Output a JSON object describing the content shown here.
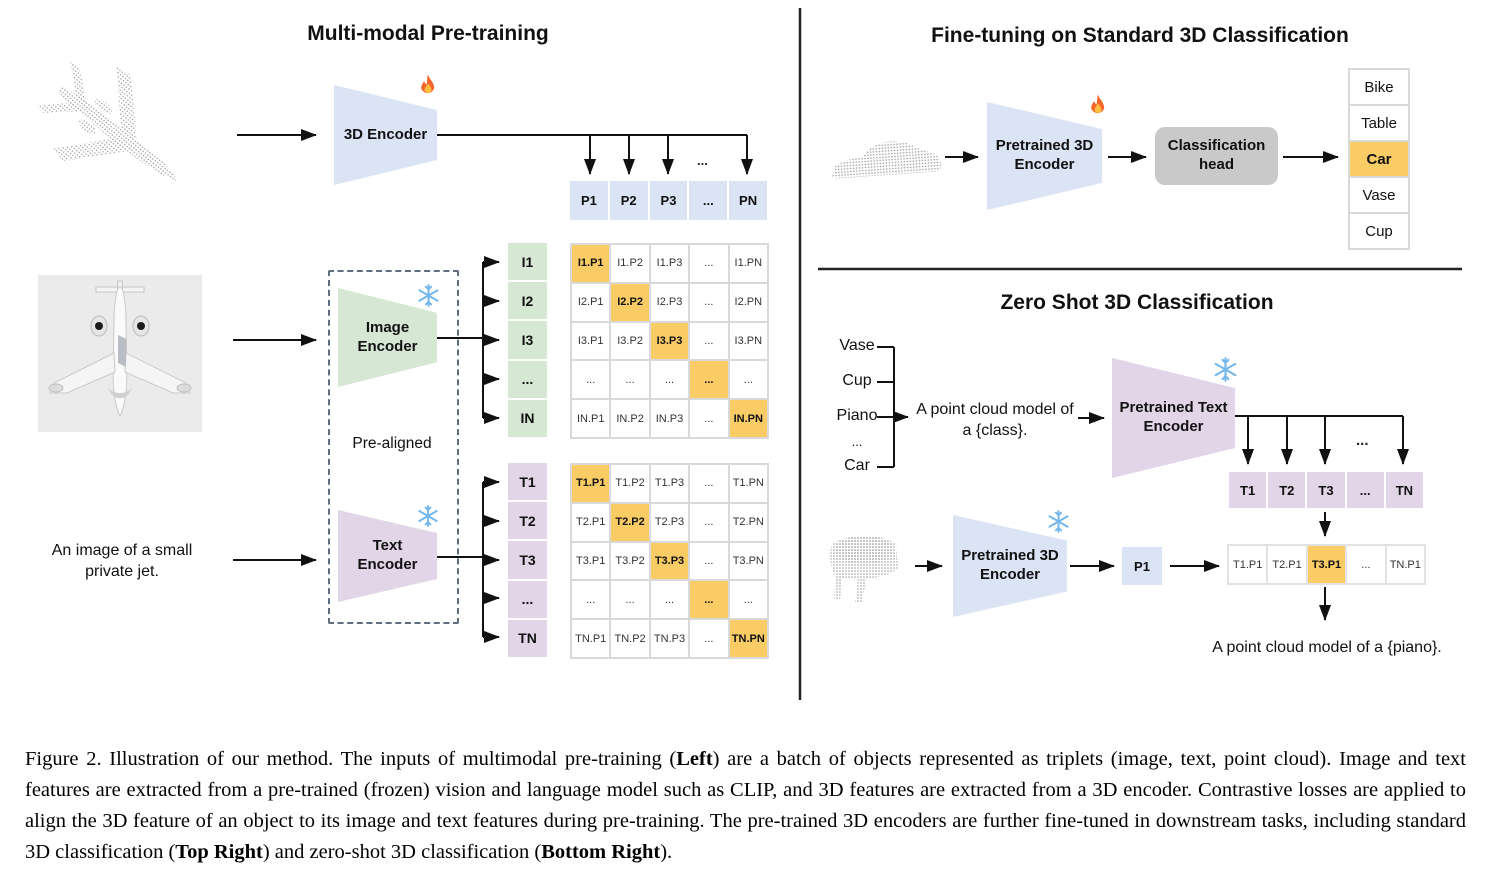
{
  "ellipsis": "...",
  "colors": {
    "blue_fill": "#dae4f4",
    "green_fill": "#d6e8d4",
    "purple_fill": "#e1d5e7",
    "highlight_orange": "#f9cc66",
    "head_gray": "#c9c9c9",
    "border_gray": "#d9d9d9"
  },
  "left_panel": {
    "title": "Multi-modal Pre-training",
    "encoder_3d": {
      "label": "3D Encoder",
      "state_icon": "fire-icon"
    },
    "image_encoder": {
      "label_lines": [
        "Image",
        "Encoder"
      ],
      "state_icon": "snowflake-icon"
    },
    "text_encoder": {
      "label_lines": [
        "Text",
        "Encoder"
      ],
      "state_icon": "snowflake-icon"
    },
    "pre_aligned_label": "Pre-aligned",
    "jet_caption_lines": [
      "An image of a small",
      "private jet."
    ],
    "p_row": [
      "P1",
      "P2",
      "P3",
      "...",
      "PN"
    ],
    "image_matrix": {
      "row_labels": [
        "I1",
        "I2",
        "I3",
        "...",
        "IN"
      ],
      "highlight_diagonal": true,
      "cells": [
        [
          "I1.P1",
          "I1.P2",
          "I1.P3",
          "...",
          "I1.PN"
        ],
        [
          "I2.P1",
          "I2.P2",
          "I2.P3",
          "...",
          "I2.PN"
        ],
        [
          "I3.P1",
          "I3.P2",
          "I3.P3",
          "...",
          "I3.PN"
        ],
        [
          "...",
          "...",
          "...",
          "...",
          "..."
        ],
        [
          "IN.P1",
          "IN.P2",
          "IN.P3",
          "...",
          "IN.PN"
        ]
      ]
    },
    "text_matrix": {
      "row_labels": [
        "T1",
        "T2",
        "T3",
        "...",
        "TN"
      ],
      "highlight_diagonal": true,
      "cells": [
        [
          "T1.P1",
          "T1.P2",
          "T1.P3",
          "...",
          "T1.PN"
        ],
        [
          "T2.P1",
          "T2.P2",
          "T2.P3",
          "...",
          "T2.PN"
        ],
        [
          "T3.P1",
          "T3.P2",
          "T3.P3",
          "...",
          "T3.PN"
        ],
        [
          "...",
          "...",
          "...",
          "...",
          "..."
        ],
        [
          "TN.P1",
          "TN.P2",
          "TN.P3",
          "...",
          "TN.PN"
        ]
      ]
    }
  },
  "top_right_panel": {
    "title": "Fine-tuning on Standard 3D Classification",
    "encoder": {
      "label_lines": [
        "Pretrained 3D",
        "Encoder"
      ],
      "state_icon": "fire-icon"
    },
    "classification_head_lines": [
      "Classification",
      "head"
    ],
    "classes": [
      {
        "label": "Bike",
        "highlighted": false
      },
      {
        "label": "Table",
        "highlighted": false
      },
      {
        "label": "Car",
        "highlighted": true
      },
      {
        "label": "Vase",
        "highlighted": false
      },
      {
        "label": "Cup",
        "highlighted": false
      }
    ]
  },
  "bottom_right_panel": {
    "title": "Zero Shot 3D Classification",
    "candidate_classes": [
      "Vase",
      "Cup",
      "Piano",
      "...",
      "Car"
    ],
    "prompt_lines": [
      "A point cloud model of",
      "a {class}."
    ],
    "text_encoder": {
      "label_lines": [
        "Pretrained Text",
        "Encoder"
      ],
      "state_icon": "snowflake-icon"
    },
    "t_row": [
      "T1",
      "T2",
      "T3",
      "...",
      "TN"
    ],
    "encoder_3d": {
      "label_lines": [
        "Pretrained 3D",
        "Encoder"
      ],
      "state_icon": "snowflake-icon"
    },
    "p1_label": "P1",
    "similarity_row": [
      {
        "label": "T1.P1",
        "highlighted": false
      },
      {
        "label": "T2.P1",
        "highlighted": false
      },
      {
        "label": "T3.P1",
        "highlighted": true
      },
      {
        "label": "...",
        "highlighted": false
      },
      {
        "label": "TN.P1",
        "highlighted": false
      }
    ],
    "result_prompt": "A point cloud model of a {piano}."
  },
  "caption": {
    "segments": [
      {
        "text": "Figure 2. Illustration of our method. The inputs of multimodal pre-training (",
        "bold": false
      },
      {
        "text": "Left",
        "bold": true
      },
      {
        "text": ") are a batch of objects represented as triplets (image, text, point cloud). Image and text features are extracted from a pre-trained (frozen) vision and language model such as CLIP, and 3D features are extracted from a 3D encoder. Contrastive losses are applied to align the 3D feature of an object to its image and text features during pre-training. The pre-trained 3D encoders are further fine-tuned in downstream tasks, including standard 3D classification (",
        "bold": false
      },
      {
        "text": "Top Right",
        "bold": true
      },
      {
        "text": ") and zero-shot 3D classification (",
        "bold": false
      },
      {
        "text": "Bottom Right",
        "bold": true
      },
      {
        "text": ").",
        "bold": false
      }
    ]
  }
}
